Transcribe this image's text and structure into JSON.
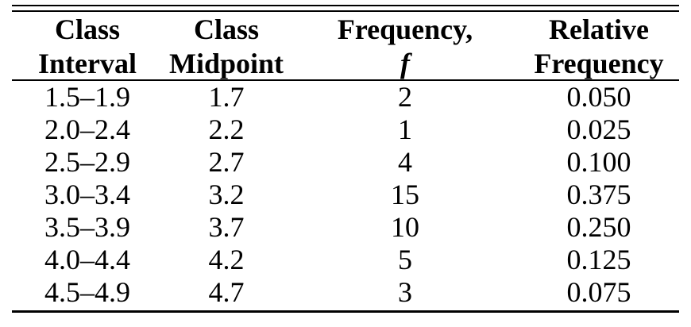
{
  "colors": {
    "background": "#ffffff",
    "text": "#000000",
    "rule": "#000000"
  },
  "table": {
    "columns": [
      {
        "line1": "Class",
        "line2": "Interval"
      },
      {
        "line1": "Class",
        "line2": "Midpoint"
      },
      {
        "line1": "Frequency,",
        "line2": "f"
      },
      {
        "line1": "Relative",
        "line2": "Frequency"
      }
    ],
    "rows": [
      {
        "class_interval": "1.5–1.9",
        "midpoint": "1.7",
        "frequency": "2",
        "relative_frequency": "0.050"
      },
      {
        "class_interval": "2.0–2.4",
        "midpoint": "2.2",
        "frequency": "1",
        "relative_frequency": "0.025"
      },
      {
        "class_interval": "2.5–2.9",
        "midpoint": "2.7",
        "frequency": "4",
        "relative_frequency": "0.100"
      },
      {
        "class_interval": "3.0–3.4",
        "midpoint": "3.2",
        "frequency": "15",
        "relative_frequency": "0.375"
      },
      {
        "class_interval": "3.5–3.9",
        "midpoint": "3.7",
        "frequency": "10",
        "relative_frequency": "0.250"
      },
      {
        "class_interval": "4.0–4.4",
        "midpoint": "4.2",
        "frequency": "5",
        "relative_frequency": "0.125"
      },
      {
        "class_interval": "4.5–4.9",
        "midpoint": "4.7",
        "frequency": "3",
        "relative_frequency": "0.075"
      }
    ]
  },
  "chart_data": {
    "type": "table",
    "title": "",
    "columns": [
      "Class Interval",
      "Class Midpoint",
      "Frequency, f",
      "Relative Frequency"
    ],
    "rows": [
      [
        "1.5–1.9",
        1.7,
        2,
        0.05
      ],
      [
        "2.0–2.4",
        2.2,
        1,
        0.025
      ],
      [
        "2.5–2.9",
        2.7,
        4,
        0.1
      ],
      [
        "3.0–3.4",
        3.2,
        15,
        0.375
      ],
      [
        "3.5–3.9",
        3.7,
        10,
        0.25
      ],
      [
        "4.0–4.4",
        4.2,
        5,
        0.125
      ],
      [
        "4.5–4.9",
        4.7,
        3,
        0.075
      ]
    ]
  }
}
